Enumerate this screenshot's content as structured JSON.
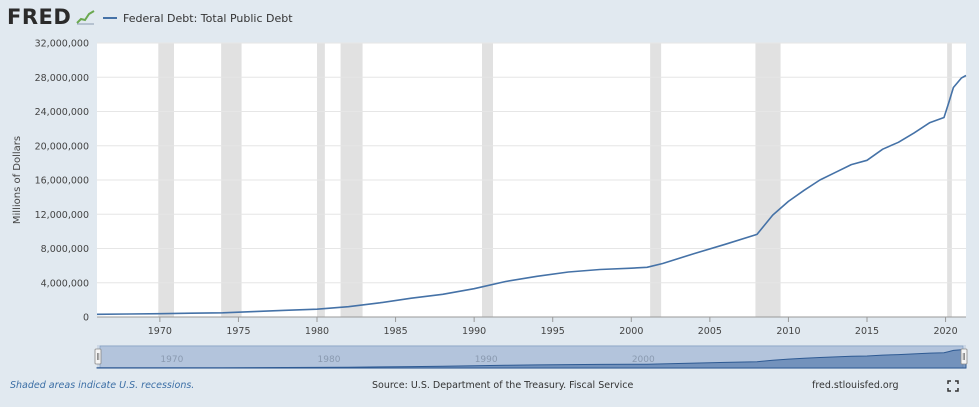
{
  "header": {
    "logo_text": "FRED",
    "logo_icon": "chart-line-icon",
    "legend_label": "Federal Debt: Total Public Debt",
    "series_color": "#4572a7"
  },
  "footer": {
    "note": "Shaded areas indicate U.S. recessions.",
    "source": "Source: U.S. Department of the Treasury. Fiscal Service",
    "site": "fred.stlouisfed.org",
    "fullscreen_icon": "fullscreen-icon"
  },
  "chart_data": {
    "type": "line",
    "title": "",
    "xlabel": "",
    "ylabel": "Millions of Dollars",
    "xlim": [
      1966,
      2021.3
    ],
    "ylim": [
      0,
      32000000
    ],
    "yticks": [
      0,
      4000000,
      8000000,
      12000000,
      16000000,
      20000000,
      24000000,
      28000000,
      32000000
    ],
    "ytick_labels": [
      "0",
      "4,000,000",
      "8,000,000",
      "12,000,000",
      "16,000,000",
      "20,000,000",
      "24,000,000",
      "28,000,000",
      "32,000,000"
    ],
    "xticks": [
      1970,
      1975,
      1980,
      1985,
      1990,
      1995,
      2000,
      2005,
      2010,
      2015,
      2020
    ],
    "xtick_labels": [
      "1970",
      "1975",
      "1980",
      "1985",
      "1990",
      "1995",
      "2000",
      "2005",
      "2010",
      "2015",
      "2020"
    ],
    "grid": true,
    "recessions": [
      [
        1969.9,
        1970.9
      ],
      [
        1973.9,
        1975.2
      ],
      [
        1980.0,
        1980.5
      ],
      [
        1981.5,
        1982.9
      ],
      [
        1990.5,
        1991.2
      ],
      [
        2001.2,
        2001.9
      ],
      [
        2007.9,
        2009.5
      ],
      [
        2020.1,
        2020.4
      ]
    ],
    "series": [
      {
        "name": "Federal Debt: Total Public Debt",
        "color": "#4572a7",
        "x": [
          1966,
          1968,
          1970,
          1972,
          1974,
          1976,
          1978,
          1980,
          1982,
          1984,
          1986,
          1988,
          1990,
          1992,
          1994,
          1996,
          1998,
          2000,
          2001,
          2002,
          2004,
          2006,
          2008,
          2009,
          2010,
          2011,
          2012,
          2013,
          2014,
          2015,
          2016,
          2017,
          2018,
          2019,
          2019.9,
          2020.2,
          2020.5,
          2021,
          2021.3
        ],
        "y": [
          320000,
          350000,
          390000,
          440000,
          490000,
          630000,
          780000,
          910000,
          1200000,
          1660000,
          2200000,
          2650000,
          3300000,
          4150000,
          4750000,
          5250000,
          5550000,
          5700000,
          5800000,
          6250000,
          7400000,
          8500000,
          9650000,
          11900000,
          13500000,
          14800000,
          16000000,
          16900000,
          17800000,
          18300000,
          19600000,
          20400000,
          21500000,
          22700000,
          23300000,
          25000000,
          26800000,
          27900000,
          28200000
        ]
      }
    ],
    "navigator": {
      "labels": [
        "1970",
        "1980",
        "1990",
        "2000"
      ],
      "label_years": [
        1970,
        1980,
        1990,
        2000
      ]
    }
  }
}
